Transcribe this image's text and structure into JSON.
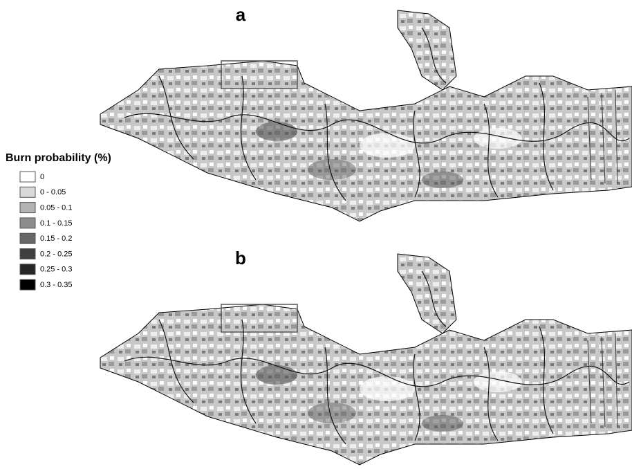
{
  "panels": [
    {
      "label": "a"
    },
    {
      "label": "b"
    }
  ],
  "legend": {
    "title": "Burn probability (%)",
    "items": [
      {
        "label": "0",
        "color": "#ffffff"
      },
      {
        "label": "0 - 0.05",
        "color": "#d9d9d9"
      },
      {
        "label": "0.05 - 0.1",
        "color": "#b3b3b3"
      },
      {
        "label": "0.1 - 0.15",
        "color": "#8c8c8c"
      },
      {
        "label": "0.15 - 0.2",
        "color": "#666666"
      },
      {
        "label": "0.2 - 0.25",
        "color": "#404040"
      },
      {
        "label": "0.25 - 0.3",
        "color": "#262626"
      },
      {
        "label": "0.3 - 0.35",
        "color": "#000000"
      }
    ]
  }
}
